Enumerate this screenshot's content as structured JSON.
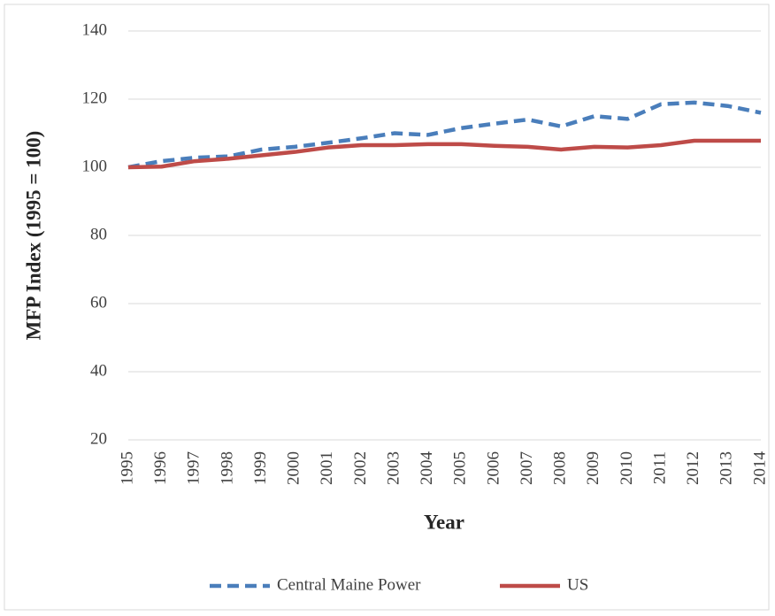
{
  "chart_data": {
    "type": "line",
    "x_label": "Year",
    "y_label": "MFP Index (1995 = 100)",
    "categories": [
      "1995",
      "1996",
      "1997",
      "1998",
      "1999",
      "2000",
      "2001",
      "2002",
      "2003",
      "2004",
      "2005",
      "2006",
      "2007",
      "2008",
      "2009",
      "2010",
      "2011",
      "2012",
      "2013",
      "2014"
    ],
    "series": [
      {
        "name": "Central Maine Power",
        "color": "#4a7ebb",
        "dashed": true,
        "values": [
          100,
          101.8,
          102.8,
          103.2,
          105.2,
          106,
          107.2,
          108.5,
          110,
          109.5,
          111.5,
          112.8,
          114,
          112,
          115,
          114.2,
          118.5,
          119,
          118,
          116
        ]
      },
      {
        "name": "US",
        "color": "#be4b48",
        "dashed": false,
        "values": [
          100,
          100.2,
          101.8,
          102.5,
          103.5,
          104.5,
          105.8,
          106.5,
          106.5,
          106.8,
          106.8,
          106.3,
          106,
          105.2,
          106,
          105.8,
          106.5,
          107.8,
          107.8,
          107.8
        ]
      }
    ],
    "ylim": [
      20,
      140
    ],
    "yticks": [
      20,
      40,
      60,
      80,
      100,
      120,
      140
    ],
    "grid": true,
    "legend": "bottom"
  }
}
